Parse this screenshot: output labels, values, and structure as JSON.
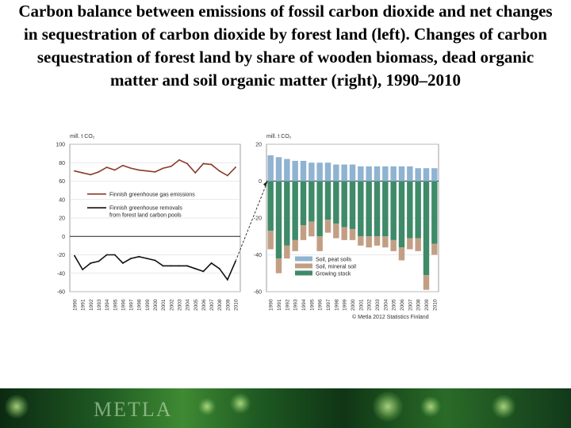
{
  "slide": {
    "title": "Carbon balance between emissions of fossil carbon dioxide and net changes in sequestration of carbon dioxide by forest land (left). Changes of carbon sequestration of forest land by share of wooden biomass, dead organic matter and soil organic matter (right), 1990–2010",
    "footer_logo": "METLA"
  },
  "chart_data": [
    {
      "type": "line",
      "unit_label": "mill. t CO₂",
      "ylim": [
        -60,
        100
      ],
      "yticks": [
        100,
        80,
        60,
        40,
        20,
        0,
        -20,
        -40,
        -60
      ],
      "grid": true,
      "legend_position": "left-middle",
      "x": [
        1990,
        1991,
        1992,
        1993,
        1994,
        1995,
        1996,
        1997,
        1998,
        1999,
        2000,
        2001,
        2002,
        2003,
        2004,
        2005,
        2006,
        2007,
        2008,
        2009,
        2010
      ],
      "series": [
        {
          "name": "Finnish greenhouse gas emissions",
          "color": "#8b3a2a",
          "values": [
            71,
            69,
            67,
            70,
            75,
            72,
            77,
            74,
            72,
            71,
            70,
            74,
            76,
            83,
            79,
            69,
            79,
            78,
            71,
            66,
            75
          ]
        },
        {
          "name": "Finnish greenhouse removals from forest land carbon pools",
          "color": "#111111",
          "values": [
            -21,
            -36,
            -29,
            -27,
            -20,
            -20,
            -29,
            -24,
            -22,
            -24,
            -26,
            -32,
            -32,
            -32,
            -32,
            -35,
            -38,
            -29,
            -35,
            -47,
            -27
          ]
        }
      ]
    },
    {
      "type": "bar",
      "stacked": true,
      "unit_label": "mill. t CO₂",
      "ylim": [
        -60,
        20
      ],
      "yticks": [
        20,
        0,
        -20,
        -40,
        -60
      ],
      "grid": true,
      "legend_position": "bottom-center",
      "categories": [
        "1990",
        "1991",
        "1992",
        "1993",
        "1994",
        "1995",
        "1996",
        "1997",
        "1998",
        "1999",
        "2000",
        "2001",
        "2002",
        "2003",
        "2004",
        "2005",
        "2006",
        "2007",
        "2008",
        "2009",
        "2010"
      ],
      "positive_series": [
        {
          "name": "Soil, peat soils",
          "color": "#8fb3d0",
          "values": [
            14,
            13,
            12,
            11,
            11,
            10,
            10,
            10,
            9,
            9,
            9,
            8,
            8,
            8,
            8,
            8,
            8,
            8,
            7,
            7,
            7
          ]
        }
      ],
      "negative_series": [
        {
          "name": "Growing stock",
          "color": "#3f8a68",
          "values": [
            -27,
            -42,
            -35,
            -32,
            -24,
            -22,
            -30,
            -21,
            -23,
            -25,
            -26,
            -30,
            -30,
            -30,
            -30,
            -32,
            -36,
            -31,
            -31,
            -51,
            -34
          ]
        },
        {
          "name": "Soil, mineral soil",
          "color": "#c29f84",
          "values": [
            -10,
            -8,
            -7,
            -6,
            -8,
            -8,
            -8,
            -7,
            -8,
            -7,
            -6,
            -5,
            -6,
            -5,
            -6,
            -6,
            -7,
            -6,
            -7,
            -8,
            -6
          ]
        }
      ],
      "legend_order": [
        "Soil, peat soils",
        "Soil, mineral soil",
        "Growing stock"
      ]
    }
  ],
  "credit": "© Metla 2012  Statistics Finland"
}
